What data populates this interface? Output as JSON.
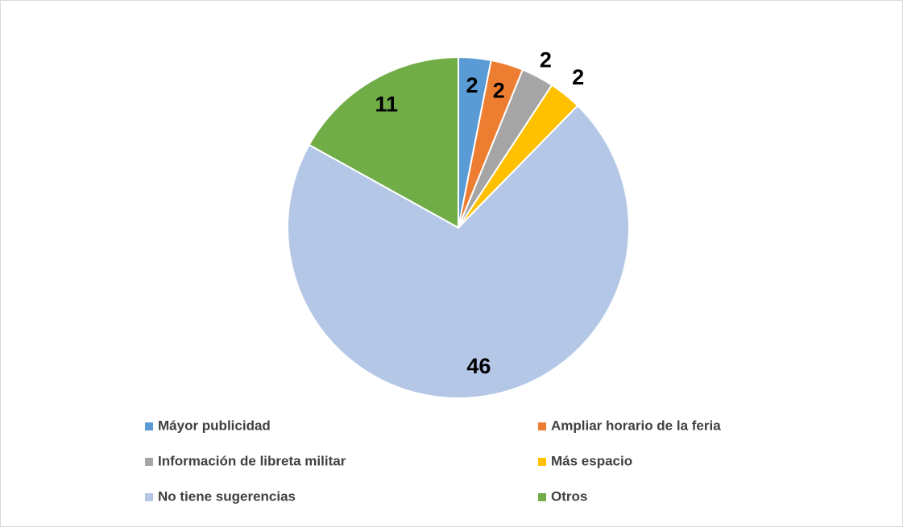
{
  "chart_data": {
    "type": "pie",
    "categories": [
      "Máyor publicidad",
      "Ampliar horario de la feria",
      "Información de libreta militar",
      "Más espacio",
      "No tiene sugerencias",
      "Otros"
    ],
    "values": [
      2,
      2,
      2,
      2,
      46,
      11
    ],
    "colors": [
      "#5b9bd5",
      "#ed7d31",
      "#a5a5a5",
      "#ffc000",
      "#b4c7e7",
      "#70ad47"
    ],
    "legend": "bottom"
  }
}
